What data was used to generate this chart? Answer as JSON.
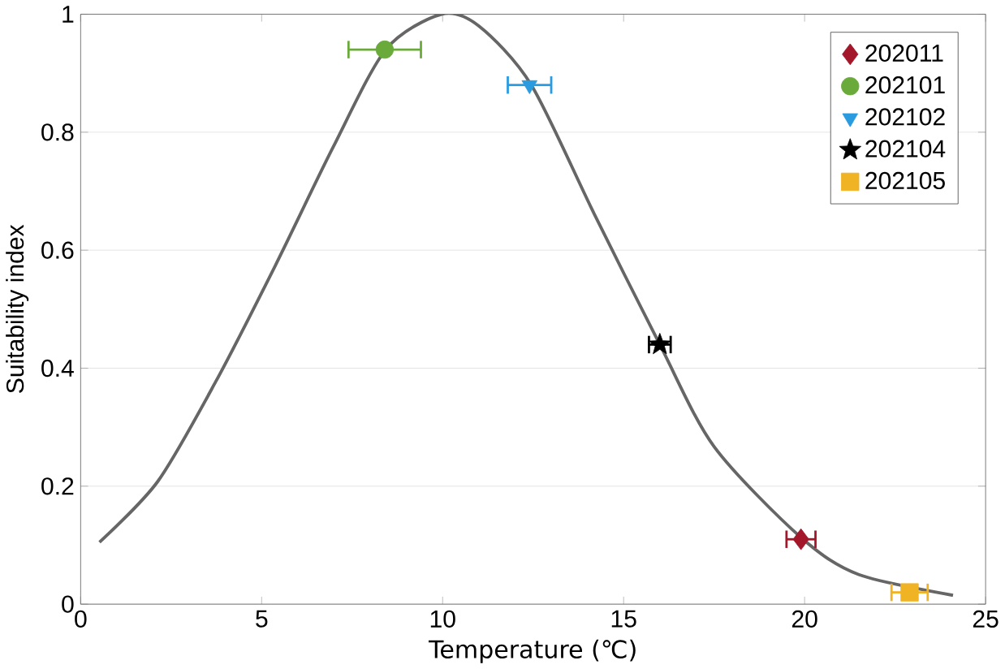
{
  "chart_data": {
    "type": "scatter",
    "xlabel": "Temperature (℃)",
    "ylabel": "Suitability index",
    "xlim": [
      0,
      25
    ],
    "ylim": [
      0,
      1
    ],
    "xticks": [
      0,
      5,
      10,
      15,
      20,
      25
    ],
    "yticks": [
      0,
      0.2,
      0.4,
      0.6,
      0.8,
      1
    ],
    "grid": "y",
    "legend": "top right",
    "series": [
      {
        "type": "line",
        "color": "#666666",
        "marker": "none",
        "x": [
          0.52,
          2.13,
          3.73,
          5.37,
          6.97,
          8.43,
          9.97,
          11.0,
          12.45,
          14.2,
          16.0,
          17.5,
          19.9,
          21.5,
          24.1
        ],
        "values": [
          0.105,
          0.208,
          0.377,
          0.573,
          0.774,
          0.94,
          1.0,
          0.98,
          0.88,
          0.66,
          0.44,
          0.267,
          0.113,
          0.05,
          0.015
        ]
      },
      {
        "name": "202011",
        "color": "#a4162a",
        "marker": "diamond",
        "x": [
          19.9
        ],
        "values": [
          0.11
        ],
        "xerrors": [
          0.4
        ]
      },
      {
        "name": "202101",
        "color": "#6aaa3a",
        "marker": "circle",
        "x": [
          8.4
        ],
        "values": [
          0.94
        ],
        "xerrors": [
          1.0
        ]
      },
      {
        "name": "202102",
        "color": "#2b9be0",
        "marker": "triangle",
        "x": [
          12.4
        ],
        "values": [
          0.88
        ],
        "xerrors": [
          0.6
        ]
      },
      {
        "name": "202104",
        "color": "#000000",
        "marker": "star",
        "x": [
          16.0
        ],
        "values": [
          0.44
        ],
        "xerrors": [
          0.3
        ]
      },
      {
        "name": "202105",
        "color": "#f0b323",
        "marker": "square",
        "x": [
          22.9
        ],
        "values": [
          0.02
        ],
        "xerrors": [
          0.5
        ]
      }
    ]
  }
}
